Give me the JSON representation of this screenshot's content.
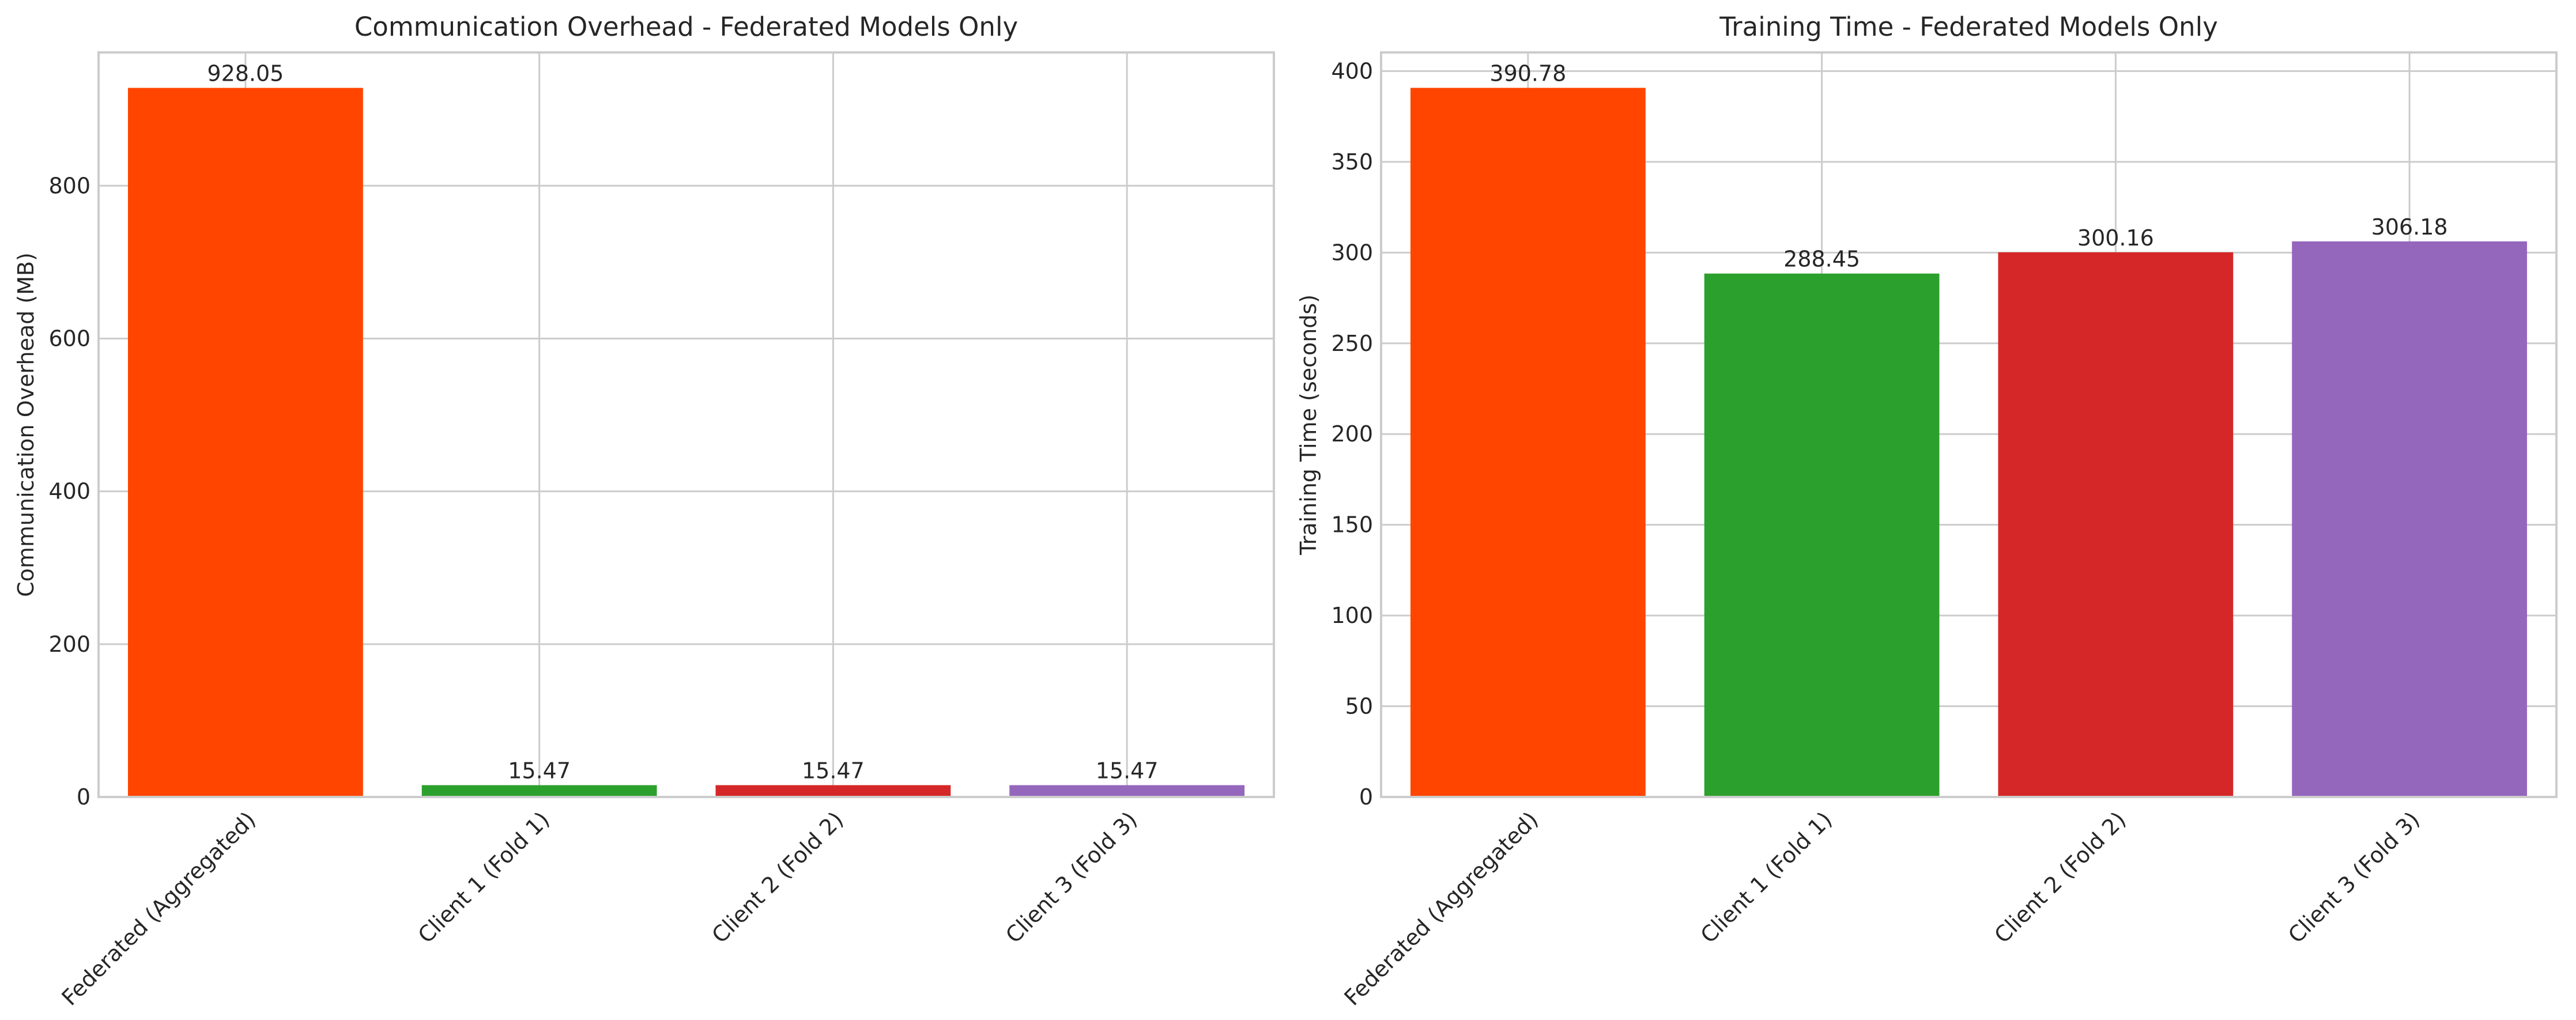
{
  "chart_data": [
    {
      "type": "bar",
      "title": "Communication Overhead - Federated Models Only",
      "xlabel": "",
      "ylabel": "Communication Overhead (MB)",
      "categories": [
        "Federated (Aggregated)",
        "Client 1 (Fold 1)",
        "Client 2 (Fold 2)",
        "Client 3 (Fold 3)"
      ],
      "values": [
        928.05,
        15.47,
        15.47,
        15.47
      ],
      "data_labels": [
        "928.05",
        "15.47",
        "15.47",
        "15.47"
      ],
      "colors": [
        "#ff4500",
        "#2ca02c",
        "#d62728",
        "#9467bd"
      ],
      "ylim": [
        0,
        974.45
      ],
      "yticks": [
        0,
        200,
        400,
        600,
        800
      ],
      "ytick_labels": [
        "0",
        "200",
        "400",
        "600",
        "800"
      ],
      "grid": true,
      "legend": "none"
    },
    {
      "type": "bar",
      "title": "Training Time - Federated Models Only",
      "xlabel": "",
      "ylabel": "Training Time (seconds)",
      "categories": [
        "Federated (Aggregated)",
        "Client 1 (Fold 1)",
        "Client 2 (Fold 2)",
        "Client 3 (Fold 3)"
      ],
      "values": [
        390.78,
        288.45,
        300.16,
        306.18
      ],
      "data_labels": [
        "390.78",
        "288.45",
        "300.16",
        "306.18"
      ],
      "colors": [
        "#ff4500",
        "#2ca02c",
        "#d62728",
        "#9467bd"
      ],
      "ylim": [
        0,
        410.3
      ],
      "yticks": [
        0,
        50,
        100,
        150,
        200,
        250,
        300,
        350,
        400
      ],
      "ytick_labels": [
        "0",
        "50",
        "100",
        "150",
        "200",
        "250",
        "300",
        "350",
        "400"
      ],
      "grid": true,
      "legend": "none"
    }
  ]
}
